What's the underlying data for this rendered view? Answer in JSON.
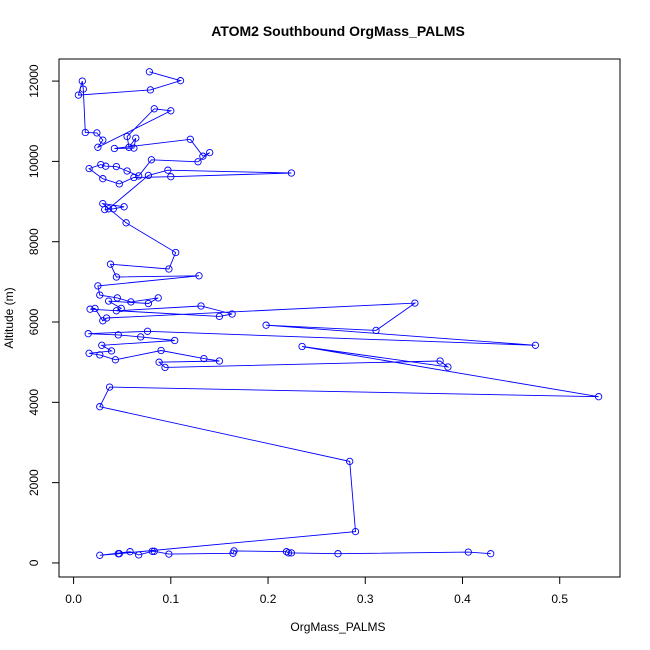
{
  "chart_data": {
    "type": "line",
    "title": "ATOM2 Southbound OrgMass_PALMS",
    "xlabel": "OrgMass_PALMS",
    "ylabel": "Altitude (m)",
    "xlim": [
      -0.015,
      0.562
    ],
    "ylim": [
      -350,
      12550
    ],
    "x_ticks": [
      0.0,
      0.1,
      0.2,
      0.3,
      0.4,
      0.5
    ],
    "x_tick_labels": [
      "0.0",
      "0.1",
      "0.2",
      "0.3",
      "0.4",
      "0.5"
    ],
    "y_ticks": [
      0,
      2000,
      4000,
      6000,
      8000,
      10000,
      12000
    ],
    "y_tick_labels": [
      "0",
      "2000",
      "4000",
      "6000",
      "8000",
      "10000",
      "12000"
    ],
    "grid": false,
    "marker": "open-circle",
    "colors": {
      "series": "#0000ff",
      "axes": "#000000",
      "background": "#ffffff"
    },
    "series": [
      {
        "points": [
          [
            0.078,
            12230
          ],
          [
            0.11,
            12010
          ],
          [
            0.079,
            11780
          ],
          [
            0.005,
            11650
          ],
          [
            0.009,
            12000
          ],
          [
            0.01,
            11800
          ],
          [
            0.012,
            10720
          ],
          [
            0.024,
            10710
          ],
          [
            0.03,
            10530
          ],
          [
            0.025,
            10350
          ],
          [
            0.1,
            11260
          ],
          [
            0.083,
            11310
          ],
          [
            0.055,
            10620
          ],
          [
            0.057,
            10350
          ],
          [
            0.064,
            10580
          ],
          [
            0.062,
            10330
          ],
          [
            0.042,
            10320
          ],
          [
            0.12,
            10550
          ],
          [
            0.133,
            10130
          ],
          [
            0.14,
            10220
          ],
          [
            0.128,
            9990
          ],
          [
            0.08,
            10040
          ],
          [
            0.067,
            9640
          ],
          [
            0.055,
            9760
          ],
          [
            0.044,
            9870
          ],
          [
            0.033,
            9880
          ],
          [
            0.028,
            9920
          ],
          [
            0.016,
            9820
          ],
          [
            0.03,
            9570
          ],
          [
            0.047,
            9440
          ],
          [
            0.062,
            9600
          ],
          [
            0.1,
            9620
          ],
          [
            0.224,
            9710
          ],
          [
            0.097,
            9780
          ],
          [
            0.077,
            9650
          ],
          [
            0.036,
            8820
          ],
          [
            0.032,
            8800
          ],
          [
            0.041,
            8820
          ],
          [
            0.052,
            8870
          ],
          [
            0.03,
            8950
          ],
          [
            0.054,
            8470
          ],
          [
            0.105,
            7730
          ],
          [
            0.098,
            7320
          ],
          [
            0.038,
            7440
          ],
          [
            0.044,
            7120
          ],
          [
            0.129,
            7150
          ],
          [
            0.025,
            6900
          ],
          [
            0.027,
            6670
          ],
          [
            0.045,
            6600
          ],
          [
            0.059,
            6500
          ],
          [
            0.087,
            6600
          ],
          [
            0.077,
            6460
          ],
          [
            0.036,
            6520
          ],
          [
            0.049,
            6340
          ],
          [
            0.044,
            6280
          ],
          [
            0.131,
            6400
          ],
          [
            0.163,
            6200
          ],
          [
            0.15,
            6140
          ],
          [
            0.017,
            6320
          ],
          [
            0.022,
            6340
          ],
          [
            0.03,
            6030
          ],
          [
            0.034,
            6100
          ],
          [
            0.351,
            6470
          ],
          [
            0.311,
            5790
          ],
          [
            0.198,
            5920
          ],
          [
            0.475,
            5420
          ],
          [
            0.076,
            5770
          ],
          [
            0.015,
            5710
          ],
          [
            0.046,
            5680
          ],
          [
            0.069,
            5630
          ],
          [
            0.104,
            5540
          ],
          [
            0.029,
            5420
          ],
          [
            0.039,
            5280
          ],
          [
            0.016,
            5220
          ],
          [
            0.027,
            5180
          ],
          [
            0.043,
            5060
          ],
          [
            0.09,
            5290
          ],
          [
            0.134,
            5090
          ],
          [
            0.15,
            5030
          ],
          [
            0.088,
            5000
          ],
          [
            0.094,
            4870
          ],
          [
            0.377,
            5030
          ],
          [
            0.385,
            4880
          ],
          [
            0.235,
            5390
          ],
          [
            0.54,
            4140
          ],
          [
            0.037,
            4380
          ],
          [
            0.027,
            3890
          ],
          [
            0.284,
            2530
          ],
          [
            0.29,
            780
          ],
          [
            0.046,
            230
          ],
          [
            0.047,
            230
          ],
          [
            0.027,
            190
          ],
          [
            0.058,
            280
          ],
          [
            0.067,
            200
          ],
          [
            0.081,
            290
          ],
          [
            0.083,
            290
          ],
          [
            0.098,
            220
          ],
          [
            0.164,
            240
          ],
          [
            0.165,
            300
          ],
          [
            0.219,
            280
          ],
          [
            0.221,
            250
          ],
          [
            0.224,
            250
          ],
          [
            0.272,
            230
          ],
          [
            0.406,
            270
          ],
          [
            0.429,
            230
          ]
        ]
      }
    ]
  }
}
